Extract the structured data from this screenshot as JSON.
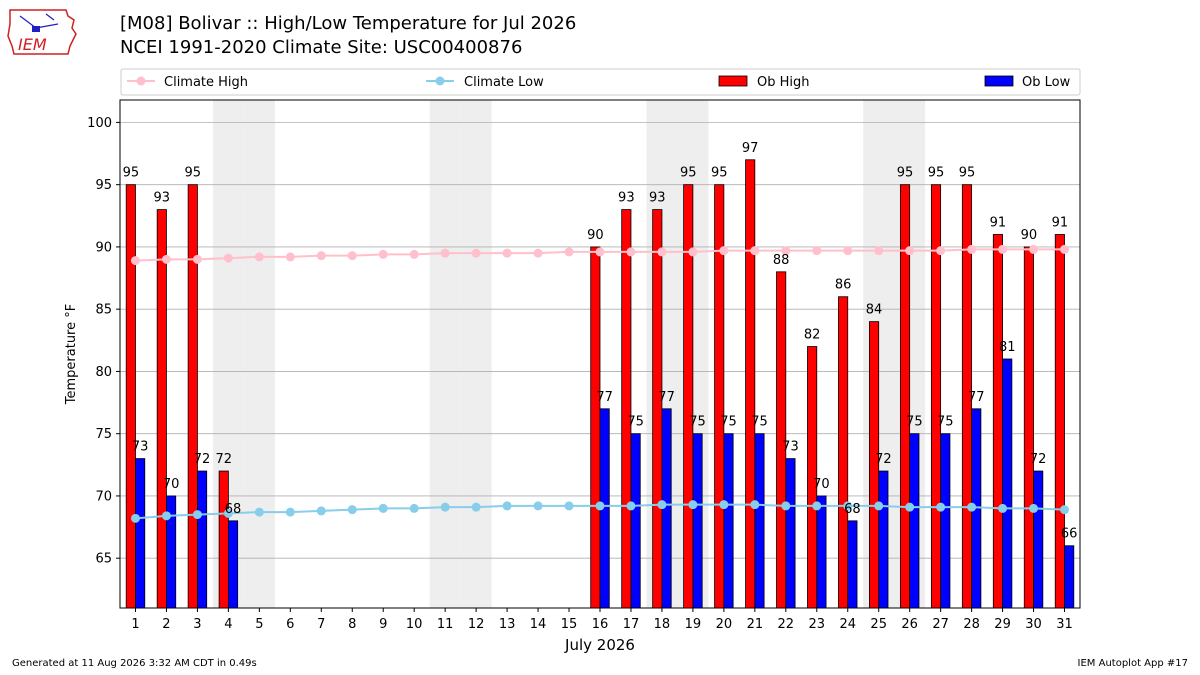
{
  "header": {
    "title_line1": "[M08] Bolivar :: High/Low Temperature for Jul 2026",
    "title_line2": "NCEI 1991-2020 Climate Site: USC00400876",
    "logo_text": "IEM"
  },
  "footer": {
    "generated": "Generated at 11 Aug 2026 3:32 AM CDT in 0.49s",
    "app": "IEM Autoplot App #17"
  },
  "chart_data": {
    "type": "bar",
    "xlabel": "July 2026",
    "ylabel": "Temperature °F",
    "ylim": [
      61,
      101.8
    ],
    "yticks": [
      65,
      70,
      75,
      80,
      85,
      90,
      95,
      100
    ],
    "grid": true,
    "legend_placement": "top",
    "categories": [
      1,
      2,
      3,
      4,
      5,
      6,
      7,
      8,
      9,
      10,
      11,
      12,
      13,
      14,
      15,
      16,
      17,
      18,
      19,
      20,
      21,
      22,
      23,
      24,
      25,
      26,
      27,
      28,
      29,
      30,
      31
    ],
    "weekend_shaded_days": [
      4,
      5,
      11,
      12,
      18,
      19,
      25,
      26
    ],
    "colors": {
      "climate_high": "#ffc0cb",
      "climate_low": "#87ceeb",
      "ob_high": "#ff0000",
      "ob_low": "#0000ff",
      "weekend_shade": "#eeeeee",
      "grid": "#b0b0b0"
    },
    "series": [
      {
        "name": "Climate High",
        "kind": "line",
        "values": [
          88.9,
          89.0,
          89.0,
          89.1,
          89.2,
          89.2,
          89.3,
          89.3,
          89.4,
          89.4,
          89.5,
          89.5,
          89.5,
          89.5,
          89.6,
          89.6,
          89.6,
          89.6,
          89.6,
          89.7,
          89.7,
          89.7,
          89.7,
          89.7,
          89.7,
          89.7,
          89.7,
          89.8,
          89.8,
          89.8,
          89.8
        ]
      },
      {
        "name": "Climate Low",
        "kind": "line",
        "values": [
          68.2,
          68.4,
          68.5,
          68.6,
          68.7,
          68.7,
          68.8,
          68.9,
          69.0,
          69.0,
          69.1,
          69.1,
          69.2,
          69.2,
          69.2,
          69.2,
          69.2,
          69.3,
          69.3,
          69.3,
          69.3,
          69.2,
          69.2,
          69.2,
          69.2,
          69.1,
          69.1,
          69.1,
          69.0,
          69.0,
          68.9
        ]
      },
      {
        "name": "Ob High",
        "kind": "bar",
        "values": [
          95,
          93,
          95,
          72,
          null,
          null,
          null,
          null,
          null,
          null,
          null,
          null,
          null,
          null,
          null,
          90,
          93,
          93,
          95,
          95,
          97,
          88,
          82,
          86,
          84,
          95,
          95,
          95,
          91,
          90,
          91
        ]
      },
      {
        "name": "Ob Low",
        "kind": "bar",
        "values": [
          73,
          70,
          72,
          68,
          null,
          null,
          null,
          null,
          null,
          null,
          null,
          null,
          null,
          null,
          null,
          77,
          75,
          77,
          75,
          75,
          75,
          73,
          70,
          68,
          72,
          75,
          75,
          77,
          81,
          72,
          66
        ]
      }
    ]
  }
}
